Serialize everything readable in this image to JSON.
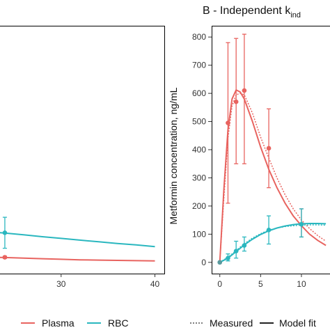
{
  "colors": {
    "plasma": "#e8635f",
    "rbc": "#2ab7bf",
    "frame": "#000000",
    "model": "#222222"
  },
  "legend": {
    "plasma": "Plasma",
    "rbc": "RBC",
    "measured": "Measured",
    "model_fit": "Model fit"
  },
  "chart_data": [
    {
      "panel": "A (partially visible)",
      "type": "line",
      "title": "",
      "xlabel": "",
      "ylabel": "",
      "xlim": [
        22,
        41
      ],
      "ylim": [
        -40,
        840
      ],
      "x_ticks": [
        30,
        40
      ],
      "y_ticks": [],
      "grid": false,
      "series": [
        {
          "name": "RBC",
          "kind": "model-fit",
          "x": [
            22,
            24,
            26,
            28,
            30,
            32,
            34,
            36,
            38,
            40
          ],
          "y": [
            108,
            104,
            98,
            91,
            85,
            79,
            73,
            67,
            62,
            56
          ]
        },
        {
          "name": "Plasma",
          "kind": "model-fit",
          "x": [
            22,
            24,
            26,
            28,
            30,
            32,
            34,
            36,
            38,
            40
          ],
          "y": [
            18,
            17,
            15,
            13,
            11,
            9,
            8,
            7,
            6,
            5
          ]
        },
        {
          "name": "RBC",
          "kind": "measured",
          "x": [
            24
          ],
          "y": [
            105
          ],
          "err_low": [
            50
          ],
          "err_high": [
            160
          ]
        },
        {
          "name": "Plasma",
          "kind": "measured",
          "x": [
            24
          ],
          "y": [
            18
          ],
          "err_low": [
            14
          ],
          "err_high": [
            22
          ]
        }
      ]
    },
    {
      "panel": "B",
      "type": "line",
      "title": "B - Independent k",
      "title_subscript": "ind",
      "xlabel": "",
      "ylabel": "Metformin concentration, ng/mL",
      "xlim": [
        -1,
        13.5
      ],
      "ylim": [
        -40,
        840
      ],
      "x_ticks": [
        0,
        5,
        10
      ],
      "y_ticks": [
        0,
        100,
        200,
        300,
        400,
        500,
        600,
        700,
        800
      ],
      "grid": false,
      "series": [
        {
          "name": "Plasma",
          "kind": "measured",
          "x": [
            0,
            1,
            2,
            3,
            6,
            10
          ],
          "y": [
            0,
            495,
            570,
            610,
            405,
            135
          ],
          "err_low": [
            0,
            210,
            350,
            350,
            265,
            90
          ],
          "err_high": [
            0,
            780,
            795,
            810,
            545,
            190
          ]
        },
        {
          "name": "RBC",
          "kind": "measured",
          "x": [
            0,
            1,
            2,
            3,
            6,
            10
          ],
          "y": [
            0,
            15,
            40,
            60,
            115,
            135
          ],
          "err_low": [
            0,
            5,
            15,
            40,
            65,
            90
          ],
          "err_high": [
            0,
            30,
            75,
            90,
            165,
            190
          ]
        },
        {
          "name": "Plasma",
          "kind": "model-fit",
          "x": [
            0,
            0.5,
            1,
            1.5,
            2,
            2.5,
            3,
            4,
            5,
            6,
            7,
            8,
            9,
            10,
            11,
            12,
            13
          ],
          "y": [
            0,
            260,
            470,
            580,
            612,
            605,
            580,
            500,
            410,
            330,
            265,
            210,
            165,
            130,
            100,
            78,
            60
          ]
        },
        {
          "name": "Plasma",
          "kind": "measured-dotted",
          "x": [
            0,
            0.5,
            1,
            1.5,
            2,
            2.5,
            3,
            4,
            5,
            6,
            7,
            8,
            9,
            10,
            11,
            12,
            13
          ],
          "y": [
            0,
            230,
            440,
            555,
            595,
            600,
            595,
            530,
            445,
            370,
            300,
            240,
            190,
            150,
            120,
            95,
            75
          ]
        },
        {
          "name": "RBC",
          "kind": "model-fit",
          "x": [
            0,
            1,
            2,
            3,
            4,
            5,
            6,
            7,
            8,
            9,
            10,
            11,
            12,
            13
          ],
          "y": [
            0,
            15,
            38,
            62,
            82,
            99,
            112,
            122,
            129,
            134,
            137,
            138,
            138,
            137
          ]
        },
        {
          "name": "RBC",
          "kind": "measured-dotted",
          "x": [
            0,
            1,
            2,
            3,
            4,
            5,
            6,
            7,
            8,
            9,
            10,
            11,
            12,
            13
          ],
          "y": [
            0,
            18,
            42,
            66,
            86,
            102,
            114,
            122,
            127,
            130,
            132,
            133,
            133,
            132
          ]
        }
      ]
    }
  ]
}
